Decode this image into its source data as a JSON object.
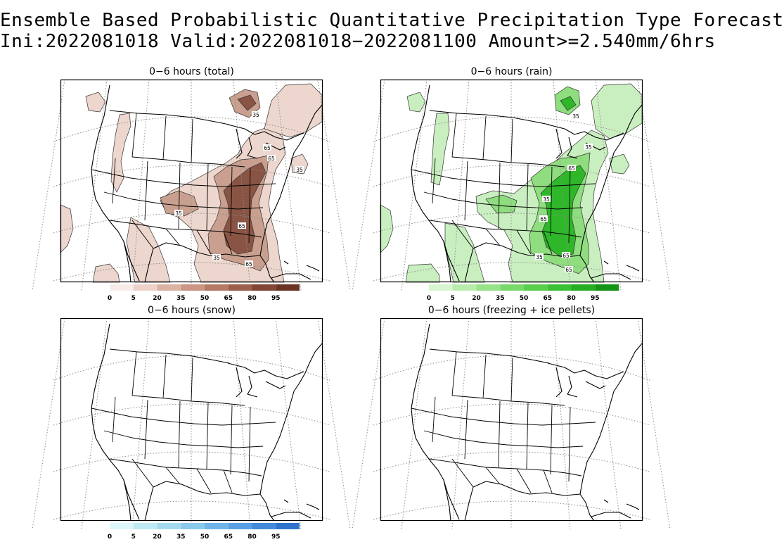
{
  "title": {
    "line1": "Ensemble Based Probabilistic Quantitative Precipitation Type Forecast",
    "line2": "Ini:2022081018 Valid:2022081018−2022081100 Amount>=2.540mm/6hrs"
  },
  "panels": [
    {
      "id": "total",
      "title": "0−6 hours (total)",
      "contour_labels": [
        "35",
        "35",
        "65",
        "65",
        "35",
        "65",
        "35",
        "65"
      ]
    },
    {
      "id": "rain",
      "title": "0−6 hours (rain)",
      "contour_labels": [
        "35",
        "35",
        "65",
        "35",
        "65",
        "35",
        "65",
        "65"
      ]
    },
    {
      "id": "snow",
      "title": "0−6 hours (snow)",
      "contour_labels": []
    },
    {
      "id": "freezing",
      "title": "0−6 hours (freezing + ice pellets)",
      "contour_labels": []
    }
  ],
  "colorbars": [
    {
      "id": "total-bar",
      "labels": [
        "0",
        "5",
        "20",
        "35",
        "50",
        "65",
        "80",
        "95"
      ],
      "colors": [
        "#f7ece8",
        "#ecd2c8",
        "#dcb3a3",
        "#cb9683",
        "#b57a65",
        "#9c5f4b",
        "#824636",
        "#6a3424"
      ]
    },
    {
      "id": "rain-bar",
      "labels": [
        "0",
        "5",
        "20",
        "35",
        "50",
        "65",
        "80",
        "95"
      ],
      "colors": [
        "#d8f5d0",
        "#b8ecac",
        "#98e28a",
        "#78d86a",
        "#58ce4c",
        "#3cc034",
        "#27ac22",
        "#149414"
      ]
    },
    {
      "id": "snow-bar",
      "labels": [
        "0",
        "5",
        "20",
        "35",
        "50",
        "65",
        "80",
        "95"
      ],
      "colors": [
        "#ddf7fb",
        "#bdeaf5",
        "#a4daf0",
        "#8ac8ec",
        "#70b4e8",
        "#589fe3",
        "#438ad9",
        "#2e74cc"
      ]
    }
  ],
  "palette": {
    "total_light": "#ecd6cd",
    "total_mid": "#c9a08f",
    "total_dark": "#8a5444",
    "rain_light": "#c9efc0",
    "rain_mid": "#8fdd7f",
    "rain_dark": "#2fb72a"
  }
}
